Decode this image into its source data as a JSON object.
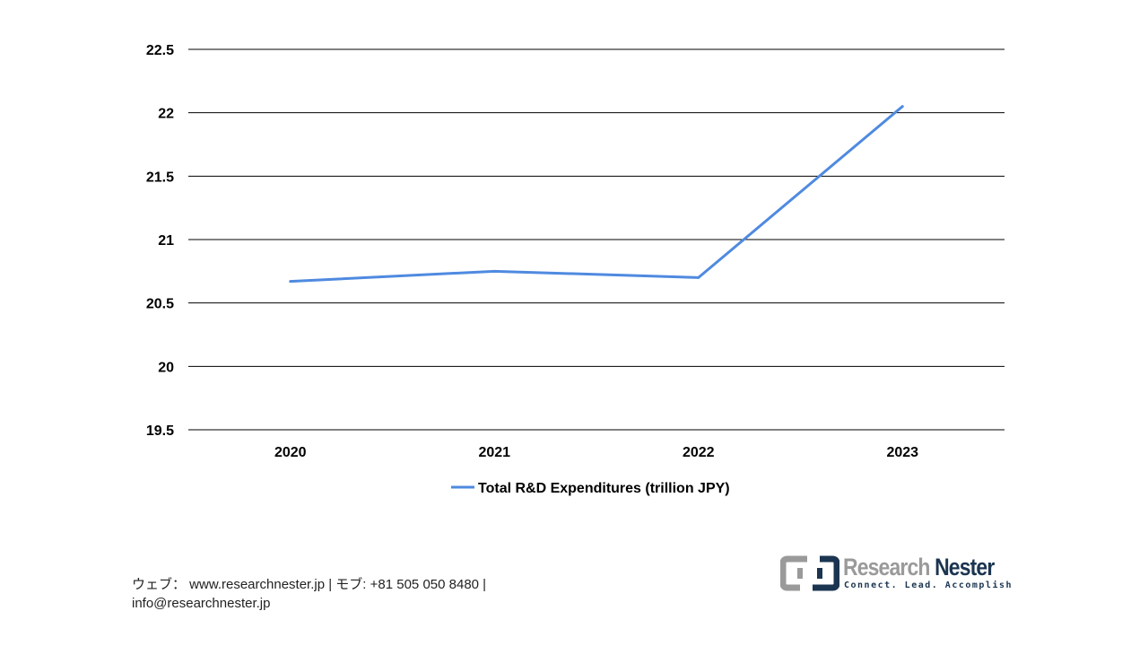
{
  "chart_data": {
    "type": "line",
    "categories": [
      "2020",
      "2021",
      "2022",
      "2023"
    ],
    "series": [
      {
        "name": "Total R&D Expenditures (trillion JPY)",
        "values": [
          20.67,
          20.75,
          20.7,
          22.05
        ],
        "color": "#4f8ae0"
      }
    ],
    "ylim": [
      19.5,
      22.5
    ],
    "yticks": [
      "19.5",
      "20",
      "20.5",
      "21",
      "21.5",
      "22",
      "22.5"
    ],
    "grid": true,
    "legend": "bottom"
  },
  "footer": {
    "line1": "ウェブ： www.researchnester.jp  | モブ: +81 505 050 8480 |",
    "line2": "info@researchnester.jp"
  },
  "logo": {
    "name_a": "Research ",
    "name_b": "Nester",
    "tagline": "Connect. Lead. Accomplish"
  }
}
